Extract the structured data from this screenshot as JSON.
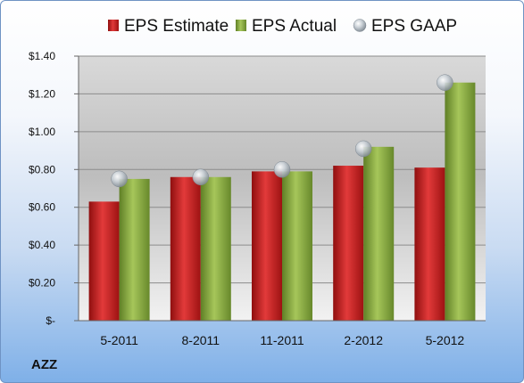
{
  "ticker": "AZZ",
  "chart_data": {
    "type": "bar",
    "categories": [
      "5-2011",
      "8-2011",
      "11-2011",
      "2-2012",
      "5-2012"
    ],
    "series": [
      {
        "name": "EPS Estimate",
        "type": "bar",
        "color": "#cc1f1f",
        "values": [
          0.63,
          0.76,
          0.79,
          0.82,
          0.81
        ]
      },
      {
        "name": "EPS Actual",
        "type": "bar",
        "color": "#8aab3e",
        "values": [
          0.75,
          0.76,
          0.79,
          0.92,
          1.26
        ]
      },
      {
        "name": "EPS GAAP",
        "type": "scatter",
        "color": "#a9b3bd",
        "values": [
          0.75,
          0.76,
          0.8,
          0.91,
          1.26
        ]
      }
    ],
    "ylim": [
      0,
      1.4
    ],
    "yticks": [
      {
        "value": 0,
        "label": "$-"
      },
      {
        "value": 0.2,
        "label": "$0.20"
      },
      {
        "value": 0.4,
        "label": "$0.40"
      },
      {
        "value": 0.6,
        "label": "$0.60"
      },
      {
        "value": 0.8,
        "label": "$0.80"
      },
      {
        "value": 1.0,
        "label": "$1.00"
      },
      {
        "value": 1.2,
        "label": "$1.20"
      },
      {
        "value": 1.4,
        "label": "$1.40"
      }
    ],
    "grid": true,
    "legend_position": "top"
  }
}
